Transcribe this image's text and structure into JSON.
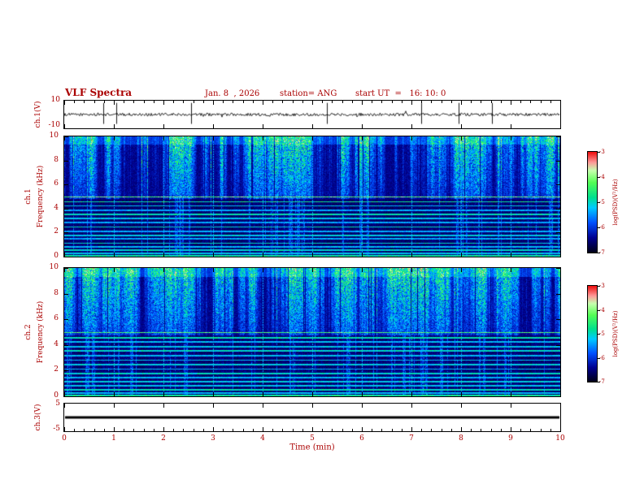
{
  "header": {
    "title": "VLF Spectra",
    "date": "Jan. 8  , 2026",
    "station": "station= ANG",
    "start_ut": "start UT  =   16: 10: 0"
  },
  "panels": [
    {
      "label": "ch.1(V)",
      "ymax": "10",
      "ymin": "-10"
    },
    {
      "ch": "ch.1",
      "ylabel": "Frequency (kHz)"
    },
    {
      "ch": "ch.2",
      "ylabel": "Frequency (kHz)"
    },
    {
      "label": "ch.3(V)",
      "ymax": "5",
      "ymin": "-5"
    }
  ],
  "yaxis_spec": {
    "ticks": [
      0,
      2,
      4,
      6,
      8,
      10
    ]
  },
  "xaxis": {
    "label": "Time (min)",
    "ticks": [
      0,
      1,
      2,
      3,
      4,
      5,
      6,
      7,
      8,
      9,
      10
    ]
  },
  "colorbar": {
    "label": "log(PSD)(V²/Hz)",
    "ticks": [
      "-3",
      "-4",
      "-5",
      "-6",
      "-7"
    ]
  },
  "colors": {
    "axis_text": "#aa0000",
    "frame": "#000000",
    "background": "#ffffff",
    "waveform": "#000000"
  },
  "colormap": [
    {
      "t": 0.0,
      "c": "#000014"
    },
    {
      "t": 0.15,
      "c": "#000090"
    },
    {
      "t": 0.3,
      "c": "#0050ff"
    },
    {
      "t": 0.45,
      "c": "#00ccff"
    },
    {
      "t": 0.55,
      "c": "#00e090"
    },
    {
      "t": 0.7,
      "c": "#55ff55"
    },
    {
      "t": 0.82,
      "c": "#c8ffb0"
    },
    {
      "t": 0.9,
      "c": "#ff9999"
    },
    {
      "t": 1.0,
      "c": "#ee1111"
    }
  ],
  "chart_data": [
    {
      "type": "line",
      "name": "ch.1 voltage waveform",
      "xlabel": "Time (min)",
      "xlim": [
        0,
        10
      ],
      "ylabel": "ch.1(V)",
      "ylim": [
        -10,
        10
      ],
      "noise_amplitude_v": 1,
      "spike_times_min": [
        0.78,
        1.05,
        2.55,
        5.3,
        7.2,
        7.95,
        8.62
      ],
      "spike_amplitude_v": 9,
      "description": "Noisy signal centered at 0 V with sporadic impulsive spikes"
    },
    {
      "type": "heatmap",
      "name": "ch.1 VLF spectrogram",
      "xlabel": "Time (min)",
      "xlim": [
        0,
        10
      ],
      "ylabel": "Frequency (kHz)",
      "ylim": [
        0,
        10
      ],
      "zlabel": "log(PSD)(V²/Hz)",
      "zlim": [
        -7,
        -3
      ],
      "broadband_min_khz": 4.8,
      "minute_gridlines": true,
      "line_frequencies_khz": [
        5.0,
        4.6,
        4.25,
        3.9,
        3.55,
        3.2,
        2.85,
        2.5,
        2.15,
        1.8,
        1.5,
        1.15,
        0.85,
        0.55,
        0.3,
        0.1
      ],
      "line_strengths": [
        0.8,
        0.62,
        0.5,
        0.45,
        0.58,
        0.5,
        0.45,
        0.55,
        0.45,
        0.52,
        0.45,
        0.55,
        0.48,
        0.55,
        0.5,
        0.6
      ],
      "description": "Dense broadband impulsive vertical streaks above ~5 kHz in green/cyan on blue; persistent narrowband horizontal lines below ~5 kHz"
    },
    {
      "type": "heatmap",
      "name": "ch.2 VLF spectrogram",
      "xlabel": "Time (min)",
      "xlim": [
        0,
        10
      ],
      "ylabel": "Frequency (kHz)",
      "ylim": [
        0,
        10
      ],
      "zlabel": "log(PSD)(V²/Hz)",
      "zlim": [
        -7,
        -3
      ],
      "broadband_min_khz": 4.8,
      "minute_gridlines": true,
      "line_frequencies_khz": [
        5.0,
        4.6,
        4.25,
        3.9,
        3.55,
        3.2,
        2.85,
        2.5,
        2.15,
        1.8,
        1.5,
        1.15,
        0.85,
        0.55,
        0.3,
        0.1
      ],
      "line_strengths": [
        0.75,
        0.58,
        0.48,
        0.5,
        0.55,
        0.48,
        0.5,
        0.52,
        0.48,
        0.55,
        0.48,
        0.52,
        0.5,
        0.58,
        0.48,
        0.62
      ],
      "description": "Same structure as ch.1 spectrogram with slightly different streak pattern"
    },
    {
      "type": "line",
      "name": "ch.3 voltage",
      "xlabel": "Time (min)",
      "xlim": [
        0,
        10
      ],
      "ylabel": "ch.3(V)",
      "ylim": [
        -5,
        5
      ],
      "constant_value_v": 0,
      "description": "Flat thick line at ~0 V"
    }
  ]
}
